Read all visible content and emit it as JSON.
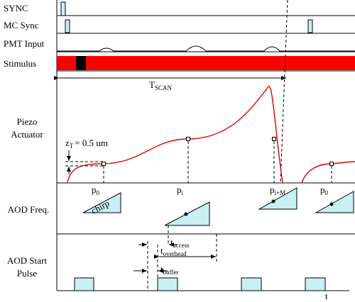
{
  "labels": {
    "sync": "SYNC",
    "mc_sync": "MC Sync",
    "pmt_input": "PMT Input",
    "stimulus": "Stimulus",
    "piezo": [
      "Piezo",
      "Actuator"
    ],
    "aod_freq": "AOD Freq.",
    "aod_start": [
      "AOD Start",
      "Pulse"
    ]
  },
  "t_scan": {
    "main": "T",
    "sub": "SCAN"
  },
  "z_t": {
    "main": "z",
    "sub": "T",
    "rest": "= 0.5 um"
  },
  "positions": [
    {
      "main": "p",
      "sub": "0"
    },
    {
      "main": "p",
      "sub": "i"
    },
    {
      "main": "p",
      "sub": "i+M"
    },
    {
      "main": "p",
      "sub": "0"
    }
  ],
  "chirp": "chirp",
  "timings": {
    "access": {
      "main": "t",
      "sub": "access"
    },
    "overhead": {
      "main": "t",
      "sub": "overhead"
    },
    "buffer": {
      "main": "t",
      "sub": "buffer"
    }
  },
  "axis": "t"
}
